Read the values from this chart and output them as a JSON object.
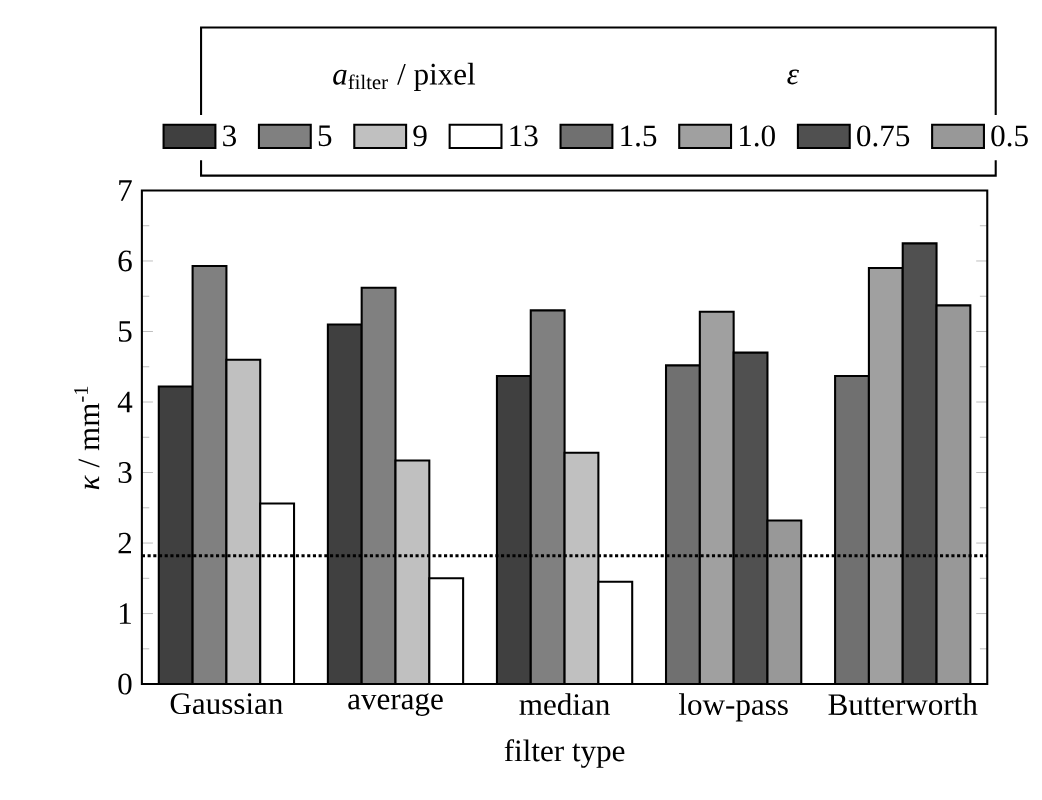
{
  "chart_data": {
    "type": "bar",
    "categories": [
      "Gaussian",
      "average",
      "median",
      "low-pass",
      "Butterworth"
    ],
    "xlabel": "filter type",
    "ylabel": "*κ* / mm$^{-1}$",
    "ylim": [
      0,
      7
    ],
    "yticks": [
      0,
      1,
      2,
      3,
      4,
      5,
      6,
      7
    ],
    "legend": "top",
    "legend_title": "*a*$_{filter}$ / pixel",
    "annotations": [
      "*ε*"
    ],
    "ref_lines": [
      {
        "axis": "y",
        "value": 1.82,
        "line_style": "dotted",
        "color": "#000000"
      }
    ],
    "series": [
      {
        "name": "3",
        "color": "#404040",
        "values": [
          4.22,
          5.1,
          4.37,
          null,
          null
        ]
      },
      {
        "name": "5",
        "color": "#808080",
        "values": [
          5.93,
          5.62,
          5.3,
          null,
          null
        ]
      },
      {
        "name": "9",
        "color": "#c0c0c0",
        "values": [
          4.6,
          3.17,
          3.28,
          null,
          null
        ]
      },
      {
        "name": "13",
        "color": "#ffffff",
        "values": [
          2.56,
          1.5,
          1.45,
          null,
          null
        ]
      },
      {
        "name": "1.5",
        "color": "#707070",
        "values": [
          null,
          null,
          null,
          4.52,
          4.37
        ]
      },
      {
        "name": "1.0",
        "color": "#a0a0a0",
        "values": [
          null,
          null,
          null,
          5.28,
          5.9
        ]
      },
      {
        "name": "0.75",
        "color": "#505050",
        "values": [
          null,
          null,
          null,
          4.7,
          6.25
        ]
      },
      {
        "name": "0.5",
        "color": "#989898",
        "values": [
          null,
          null,
          null,
          2.32,
          5.37
        ]
      }
    ]
  }
}
